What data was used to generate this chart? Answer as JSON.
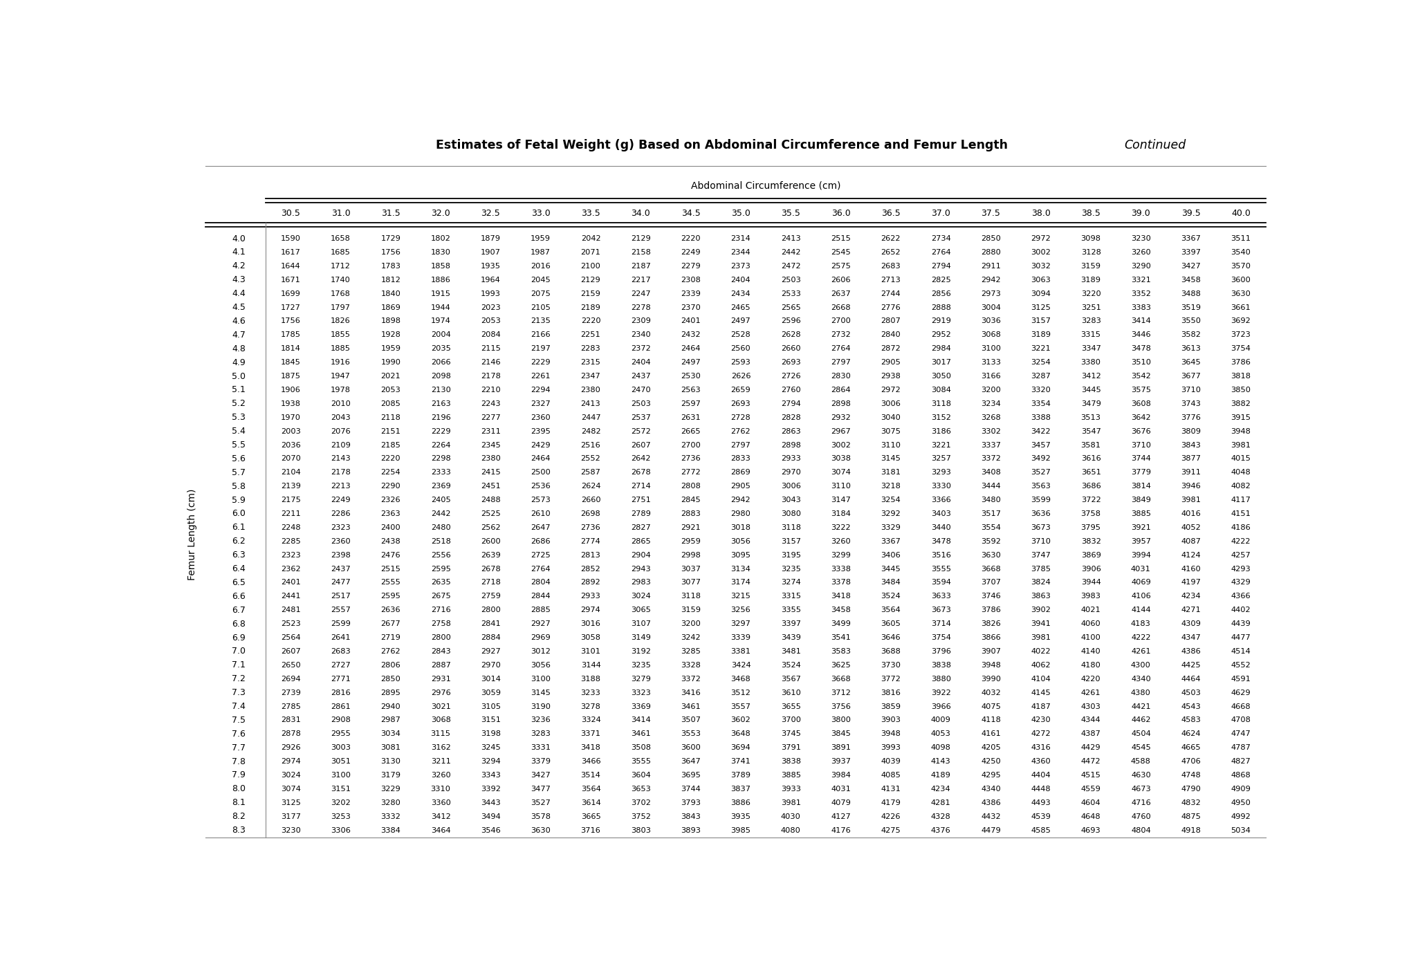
{
  "title_bold": "Estimates of Fetal Weight (g) Based on Abdominal Circumference and Femur Length",
  "title_continued": "Continued",
  "col_header_label": "Abdominal Circumference (cm)",
  "row_header_label": "Femur Length (cm)",
  "col_headers": [
    "30.5",
    "31.0",
    "31.5",
    "32.0",
    "32.5",
    "33.0",
    "33.5",
    "34.0",
    "34.5",
    "35.0",
    "35.5",
    "36.0",
    "36.5",
    "37.0",
    "37.5",
    "38.0",
    "38.5",
    "39.0",
    "39.5",
    "40.0"
  ],
  "row_headers": [
    "4.0",
    "4.1",
    "4.2",
    "4.3",
    "4.4",
    "4.5",
    "4.6",
    "4.7",
    "4.8",
    "4.9",
    "5.0",
    "5.1",
    "5.2",
    "5.3",
    "5.4",
    "5.5",
    "5.6",
    "5.7",
    "5.8",
    "5.9",
    "6.0",
    "6.1",
    "6.2",
    "6.3",
    "6.4",
    "6.5",
    "6.6",
    "6.7",
    "6.8",
    "6.9",
    "7.0",
    "7.1",
    "7.2",
    "7.3",
    "7.4",
    "7.5",
    "7.6",
    "7.7",
    "7.8",
    "7.9",
    "8.0",
    "8.1",
    "8.2",
    "8.3"
  ],
  "table_data": [
    [
      1590,
      1658,
      1729,
      1802,
      1879,
      1959,
      2042,
      2129,
      2220,
      2314,
      2413,
      2515,
      2622,
      2734,
      2850,
      2972,
      3098,
      3230,
      3367,
      3511
    ],
    [
      1617,
      1685,
      1756,
      1830,
      1907,
      1987,
      2071,
      2158,
      2249,
      2344,
      2442,
      2545,
      2652,
      2764,
      2880,
      3002,
      3128,
      3260,
      3397,
      3540
    ],
    [
      1644,
      1712,
      1783,
      1858,
      1935,
      2016,
      2100,
      2187,
      2279,
      2373,
      2472,
      2575,
      2683,
      2794,
      2911,
      3032,
      3159,
      3290,
      3427,
      3570
    ],
    [
      1671,
      1740,
      1812,
      1886,
      1964,
      2045,
      2129,
      2217,
      2308,
      2404,
      2503,
      2606,
      2713,
      2825,
      2942,
      3063,
      3189,
      3321,
      3458,
      3600
    ],
    [
      1699,
      1768,
      1840,
      1915,
      1993,
      2075,
      2159,
      2247,
      2339,
      2434,
      2533,
      2637,
      2744,
      2856,
      2973,
      3094,
      3220,
      3352,
      3488,
      3630
    ],
    [
      1727,
      1797,
      1869,
      1944,
      2023,
      2105,
      2189,
      2278,
      2370,
      2465,
      2565,
      2668,
      2776,
      2888,
      3004,
      3125,
      3251,
      3383,
      3519,
      3661
    ],
    [
      1756,
      1826,
      1898,
      1974,
      2053,
      2135,
      2220,
      2309,
      2401,
      2497,
      2596,
      2700,
      2807,
      2919,
      3036,
      3157,
      3283,
      3414,
      3550,
      3692
    ],
    [
      1785,
      1855,
      1928,
      2004,
      2084,
      2166,
      2251,
      2340,
      2432,
      2528,
      2628,
      2732,
      2840,
      2952,
      3068,
      3189,
      3315,
      3446,
      3582,
      3723
    ],
    [
      1814,
      1885,
      1959,
      2035,
      2115,
      2197,
      2283,
      2372,
      2464,
      2560,
      2660,
      2764,
      2872,
      2984,
      3100,
      3221,
      3347,
      3478,
      3613,
      3754
    ],
    [
      1845,
      1916,
      1990,
      2066,
      2146,
      2229,
      2315,
      2404,
      2497,
      2593,
      2693,
      2797,
      2905,
      3017,
      3133,
      3254,
      3380,
      3510,
      3645,
      3786
    ],
    [
      1875,
      1947,
      2021,
      2098,
      2178,
      2261,
      2347,
      2437,
      2530,
      2626,
      2726,
      2830,
      2938,
      3050,
      3166,
      3287,
      3412,
      3542,
      3677,
      3818
    ],
    [
      1906,
      1978,
      2053,
      2130,
      2210,
      2294,
      2380,
      2470,
      2563,
      2659,
      2760,
      2864,
      2972,
      3084,
      3200,
      3320,
      3445,
      3575,
      3710,
      3850
    ],
    [
      1938,
      2010,
      2085,
      2163,
      2243,
      2327,
      2413,
      2503,
      2597,
      2693,
      2794,
      2898,
      3006,
      3118,
      3234,
      3354,
      3479,
      3608,
      3743,
      3882
    ],
    [
      1970,
      2043,
      2118,
      2196,
      2277,
      2360,
      2447,
      2537,
      2631,
      2728,
      2828,
      2932,
      3040,
      3152,
      3268,
      3388,
      3513,
      3642,
      3776,
      3915
    ],
    [
      2003,
      2076,
      2151,
      2229,
      2311,
      2395,
      2482,
      2572,
      2665,
      2762,
      2863,
      2967,
      3075,
      3186,
      3302,
      3422,
      3547,
      3676,
      3809,
      3948
    ],
    [
      2036,
      2109,
      2185,
      2264,
      2345,
      2429,
      2516,
      2607,
      2700,
      2797,
      2898,
      3002,
      3110,
      3221,
      3337,
      3457,
      3581,
      3710,
      3843,
      3981
    ],
    [
      2070,
      2143,
      2220,
      2298,
      2380,
      2464,
      2552,
      2642,
      2736,
      2833,
      2933,
      3038,
      3145,
      3257,
      3372,
      3492,
      3616,
      3744,
      3877,
      4015
    ],
    [
      2104,
      2178,
      2254,
      2333,
      2415,
      2500,
      2587,
      2678,
      2772,
      2869,
      2970,
      3074,
      3181,
      3293,
      3408,
      3527,
      3651,
      3779,
      3911,
      4048
    ],
    [
      2139,
      2213,
      2290,
      2369,
      2451,
      2536,
      2624,
      2714,
      2808,
      2905,
      3006,
      3110,
      3218,
      3330,
      3444,
      3563,
      3686,
      3814,
      3946,
      4082
    ],
    [
      2175,
      2249,
      2326,
      2405,
      2488,
      2573,
      2660,
      2751,
      2845,
      2942,
      3043,
      3147,
      3254,
      3366,
      3480,
      3599,
      3722,
      3849,
      3981,
      4117
    ],
    [
      2211,
      2286,
      2363,
      2442,
      2525,
      2610,
      2698,
      2789,
      2883,
      2980,
      3080,
      3184,
      3292,
      3403,
      3517,
      3636,
      3758,
      3885,
      4016,
      4151
    ],
    [
      2248,
      2323,
      2400,
      2480,
      2562,
      2647,
      2736,
      2827,
      2921,
      3018,
      3118,
      3222,
      3329,
      3440,
      3554,
      3673,
      3795,
      3921,
      4052,
      4186
    ],
    [
      2285,
      2360,
      2438,
      2518,
      2600,
      2686,
      2774,
      2865,
      2959,
      3056,
      3157,
      3260,
      3367,
      3478,
      3592,
      3710,
      3832,
      3957,
      4087,
      4222
    ],
    [
      2323,
      2398,
      2476,
      2556,
      2639,
      2725,
      2813,
      2904,
      2998,
      3095,
      3195,
      3299,
      3406,
      3516,
      3630,
      3747,
      3869,
      3994,
      4124,
      4257
    ],
    [
      2362,
      2437,
      2515,
      2595,
      2678,
      2764,
      2852,
      2943,
      3037,
      3134,
      3235,
      3338,
      3445,
      3555,
      3668,
      3785,
      3906,
      4031,
      4160,
      4293
    ],
    [
      2401,
      2477,
      2555,
      2635,
      2718,
      2804,
      2892,
      2983,
      3077,
      3174,
      3274,
      3378,
      3484,
      3594,
      3707,
      3824,
      3944,
      4069,
      4197,
      4329
    ],
    [
      2441,
      2517,
      2595,
      2675,
      2759,
      2844,
      2933,
      3024,
      3118,
      3215,
      3315,
      3418,
      3524,
      3633,
      3746,
      3863,
      3983,
      4106,
      4234,
      4366
    ],
    [
      2481,
      2557,
      2636,
      2716,
      2800,
      2885,
      2974,
      3065,
      3159,
      3256,
      3355,
      3458,
      3564,
      3673,
      3786,
      3902,
      4021,
      4144,
      4271,
      4402
    ],
    [
      2523,
      2599,
      2677,
      2758,
      2841,
      2927,
      3016,
      3107,
      3200,
      3297,
      3397,
      3499,
      3605,
      3714,
      3826,
      3941,
      4060,
      4183,
      4309,
      4439
    ],
    [
      2564,
      2641,
      2719,
      2800,
      2884,
      2969,
      3058,
      3149,
      3242,
      3339,
      3439,
      3541,
      3646,
      3754,
      3866,
      3981,
      4100,
      4222,
      4347,
      4477
    ],
    [
      2607,
      2683,
      2762,
      2843,
      2927,
      3012,
      3101,
      3192,
      3285,
      3381,
      3481,
      3583,
      3688,
      3796,
      3907,
      4022,
      4140,
      4261,
      4386,
      4514
    ],
    [
      2650,
      2727,
      2806,
      2887,
      2970,
      3056,
      3144,
      3235,
      3328,
      3424,
      3524,
      3625,
      3730,
      3838,
      3948,
      4062,
      4180,
      4300,
      4425,
      4552
    ],
    [
      2694,
      2771,
      2850,
      2931,
      3014,
      3100,
      3188,
      3279,
      3372,
      3468,
      3567,
      3668,
      3772,
      3880,
      3990,
      4104,
      4220,
      4340,
      4464,
      4591
    ],
    [
      2739,
      2816,
      2895,
      2976,
      3059,
      3145,
      3233,
      3323,
      3416,
      3512,
      3610,
      3712,
      3816,
      3922,
      4032,
      4145,
      4261,
      4380,
      4503,
      4629
    ],
    [
      2785,
      2861,
      2940,
      3021,
      3105,
      3190,
      3278,
      3369,
      3461,
      3557,
      3655,
      3756,
      3859,
      3966,
      4075,
      4187,
      4303,
      4421,
      4543,
      4668
    ],
    [
      2831,
      2908,
      2987,
      3068,
      3151,
      3236,
      3324,
      3414,
      3507,
      3602,
      3700,
      3800,
      3903,
      4009,
      4118,
      4230,
      4344,
      4462,
      4583,
      4708
    ],
    [
      2878,
      2955,
      3034,
      3115,
      3198,
      3283,
      3371,
      3461,
      3553,
      3648,
      3745,
      3845,
      3948,
      4053,
      4161,
      4272,
      4387,
      4504,
      4624,
      4747
    ],
    [
      2926,
      3003,
      3081,
      3162,
      3245,
      3331,
      3418,
      3508,
      3600,
      3694,
      3791,
      3891,
      3993,
      4098,
      4205,
      4316,
      4429,
      4545,
      4665,
      4787
    ],
    [
      2974,
      3051,
      3130,
      3211,
      3294,
      3379,
      3466,
      3555,
      3647,
      3741,
      3838,
      3937,
      4039,
      4143,
      4250,
      4360,
      4472,
      4588,
      4706,
      4827
    ],
    [
      3024,
      3100,
      3179,
      3260,
      3343,
      3427,
      3514,
      3604,
      3695,
      3789,
      3885,
      3984,
      4085,
      4189,
      4295,
      4404,
      4515,
      4630,
      4748,
      4868
    ],
    [
      3074,
      3151,
      3229,
      3310,
      3392,
      3477,
      3564,
      3653,
      3744,
      3837,
      3933,
      4031,
      4131,
      4234,
      4340,
      4448,
      4559,
      4673,
      4790,
      4909
    ],
    [
      3125,
      3202,
      3280,
      3360,
      3443,
      3527,
      3614,
      3702,
      3793,
      3886,
      3981,
      4079,
      4179,
      4281,
      4386,
      4493,
      4604,
      4716,
      4832,
      4950
    ],
    [
      3177,
      3253,
      3332,
      3412,
      3494,
      3578,
      3665,
      3752,
      3843,
      3935,
      4030,
      4127,
      4226,
      4328,
      4432,
      4539,
      4648,
      4760,
      4875,
      4992
    ],
    [
      3230,
      3306,
      3384,
      3464,
      3546,
      3630,
      3716,
      3803,
      3893,
      3985,
      4080,
      4176,
      4275,
      4376,
      4479,
      4585,
      4693,
      4804,
      4918,
      5034
    ]
  ],
  "background_color": "#ffffff",
  "text_color": "#000000",
  "title_fontsize": 12.5,
  "cell_fontsize": 8.2,
  "header_fontsize": 9,
  "row_label_fontsize": 9,
  "axis_label_fontsize": 10
}
